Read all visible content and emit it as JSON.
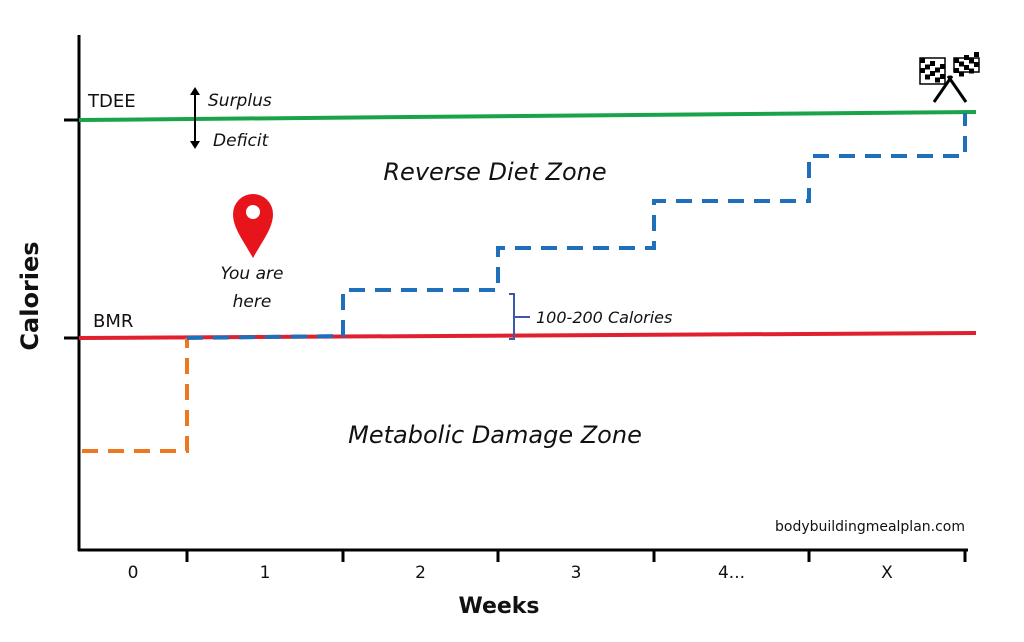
{
  "axes": {
    "y_label": "Calories",
    "x_label": "Weeks",
    "x_ticks": [
      "0",
      "1",
      "2",
      "3",
      "4...",
      "X"
    ]
  },
  "lines": {
    "tdee_label": "TDEE",
    "bmr_label": "BMR",
    "tdee_color": "#1aa34a",
    "bmr_color": "#e0202e"
  },
  "arrows": {
    "surplus": "Surplus",
    "deficit": "Deficit"
  },
  "zones": {
    "reverse": "Reverse Diet Zone",
    "damage": "Metabolic Damage Zone"
  },
  "marker": {
    "line1": "You are",
    "line2": "here",
    "icon": "map-pin-icon",
    "color": "#e8141c"
  },
  "step_annotation": "100-200 Calories",
  "finish_icon": "checkered-flags-icon",
  "watermark": "bodybuildingmealplan.com",
  "colors": {
    "reverse_path": "#1f6fba",
    "deficit_path": "#ee7722"
  }
}
